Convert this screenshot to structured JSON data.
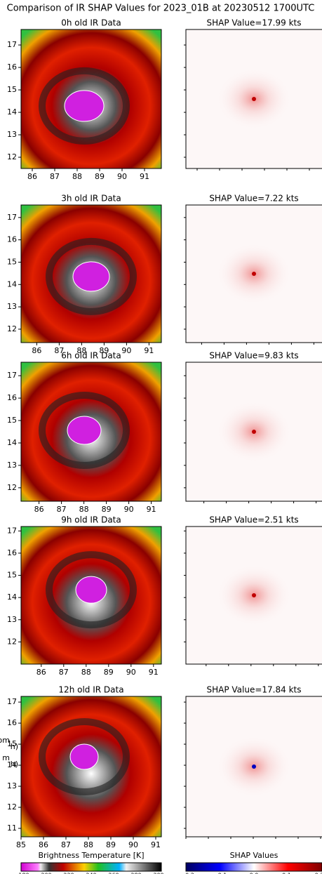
{
  "title": "Comparison of IR SHAP Values for 2023_01B at 20230512 1700UTC",
  "panels": [
    {
      "ir_title": "0h old IR Data",
      "shap_title": "SHAP Value=17.99 kts",
      "xlim": [
        85.5,
        91.75
      ],
      "ylim": [
        11.5,
        17.69
      ],
      "xticks": [
        86,
        87,
        88,
        89,
        90,
        91
      ],
      "yticks": [
        17,
        16,
        15,
        14,
        13,
        12
      ]
    },
    {
      "ir_title": "3h old IR Data",
      "shap_title": "SHAP Value=7.22 kts",
      "xlim": [
        85.3,
        91.55
      ],
      "ylim": [
        11.4,
        17.56
      ],
      "xticks": [
        86,
        87,
        88,
        89,
        90,
        91
      ],
      "yticks": [
        17,
        16,
        15,
        14,
        13,
        12
      ]
    },
    {
      "ir_title": "6h old IR Data",
      "shap_title": "SHAP Value=9.83 kts",
      "xlim": [
        85.2,
        91.45
      ],
      "ylim": [
        11.4,
        17.6
      ],
      "xticks": [
        86,
        87,
        88,
        89,
        90,
        91
      ],
      "yticks": [
        17,
        16,
        15,
        14,
        13,
        12
      ]
    },
    {
      "ir_title": "9h old IR Data",
      "shap_title": "SHAP Value=2.51 kts",
      "xlim": [
        85.1,
        91.35
      ],
      "ylim": [
        11.0,
        17.2
      ],
      "xticks": [
        86,
        87,
        88,
        89,
        90,
        91
      ],
      "yticks": [
        17,
        16,
        15,
        14,
        13,
        12
      ]
    },
    {
      "ir_title": "12h old IR Data",
      "shap_title": "SHAP Value=17.84 kts",
      "xlim": [
        85,
        91.25
      ],
      "ylim": [
        10.6,
        17.27
      ],
      "xticks": [
        85,
        86,
        87,
        88,
        89,
        90,
        91
      ],
      "yticks": [
        17,
        16,
        15,
        14,
        13,
        12,
        11
      ]
    }
  ],
  "side_fragments": [
    "om",
    "h)",
    "m",
    "h)"
  ],
  "colorbars": [
    {
      "label": "Brightness Temperature [K]",
      "ticks": [
        "180",
        "200",
        "220",
        "240",
        "260",
        "280",
        "300"
      ]
    },
    {
      "label": "SHAP Values",
      "ticks": [
        "-0.2",
        "-0.1",
        "0.0",
        "0.1",
        "0.2"
      ]
    }
  ]
}
